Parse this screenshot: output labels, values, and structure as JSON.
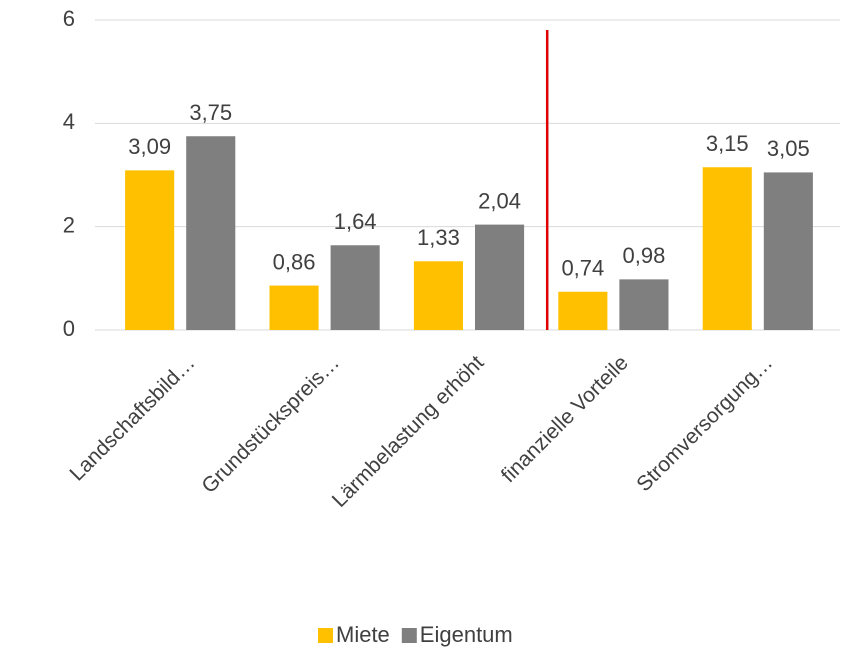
{
  "chart_data": {
    "type": "bar",
    "categories": [
      "Landschaftsbild…",
      "Grundstückspreis…",
      "Lärmbelastung erhöht",
      "finanzielle Vorteile",
      "Stromversorgung…"
    ],
    "series": [
      {
        "name": "Miete",
        "color": "#ffc000",
        "values": [
          3.09,
          0.86,
          1.33,
          0.74,
          3.15
        ],
        "value_labels": [
          "3,09",
          "0,86",
          "1,33",
          "0,74",
          "3,15"
        ]
      },
      {
        "name": "Eigentum",
        "color": "#7f7f7f",
        "values": [
          3.75,
          1.64,
          2.04,
          0.98,
          3.05
        ],
        "value_labels": [
          "3,75",
          "1,64",
          "2,04",
          "0,98",
          "3,05"
        ]
      }
    ],
    "ylim": [
      0,
      6
    ],
    "yticks": [
      0,
      2,
      4,
      6
    ],
    "grid": true,
    "legend": "bottom"
  }
}
